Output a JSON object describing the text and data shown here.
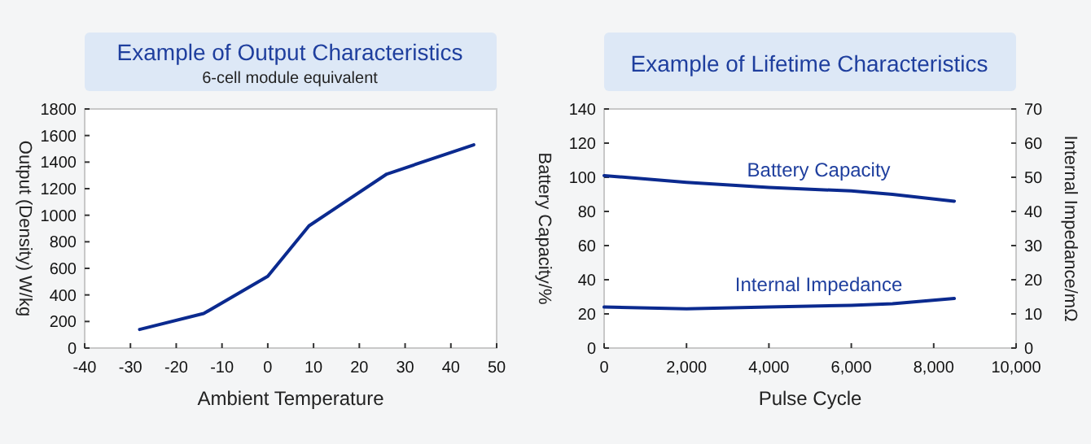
{
  "chart_data": [
    {
      "type": "line",
      "title": "Example of Output Characteristics",
      "subtitle": "6-cell module equivalent",
      "xlabel": "Ambient Temperature",
      "ylabel": "Output (Density) W/kg",
      "xlim": [
        -40,
        50
      ],
      "xticks": [
        -40,
        -30,
        -20,
        -10,
        0,
        10,
        20,
        30,
        40,
        50
      ],
      "ylim": [
        0,
        1800
      ],
      "yticks": [
        0,
        200,
        400,
        600,
        800,
        1000,
        1200,
        1400,
        1600,
        1800
      ],
      "grid": false,
      "x": [
        -28,
        -14,
        0,
        9,
        26,
        45
      ],
      "series": [
        {
          "color": "#0b2a8f",
          "values": [
            140,
            260,
            540,
            920,
            1310,
            1530
          ]
        }
      ]
    },
    {
      "type": "line",
      "title": "Example of Lifetime Characteristics",
      "xlabel": "Pulse Cycle",
      "ylabel": "Battery Capacity/%",
      "y2label": "Internal Impedance/mΩ",
      "xlim": [
        0,
        10000
      ],
      "xticks": [
        {
          "value": 0,
          "label": "0"
        },
        {
          "value": 2000,
          "label": "2,000"
        },
        {
          "value": 4000,
          "label": "4,000"
        },
        {
          "value": 6000,
          "label": "6,000"
        },
        {
          "value": 8000,
          "label": "8,000"
        },
        {
          "value": 10000,
          "label": "10,000"
        }
      ],
      "ylim": [
        0,
        140
      ],
      "yticks": [
        0,
        20,
        40,
        60,
        80,
        100,
        120,
        140
      ],
      "y2lim": [
        0,
        70
      ],
      "y2ticks": [
        0,
        10,
        20,
        30,
        40,
        50,
        60,
        70
      ],
      "grid": false,
      "x": [
        0,
        2000,
        4000,
        6000,
        7000,
        8500
      ],
      "series": [
        {
          "name": "Battery Capacity",
          "color": "#0b2a8f",
          "values": [
            101,
            97,
            94,
            92,
            90,
            86
          ]
        },
        {
          "name": "Internal Impedance",
          "color": "#0b2a8f",
          "axis": "y2",
          "values": [
            12,
            11.5,
            12,
            12.5,
            13,
            14.5
          ]
        }
      ]
    }
  ]
}
